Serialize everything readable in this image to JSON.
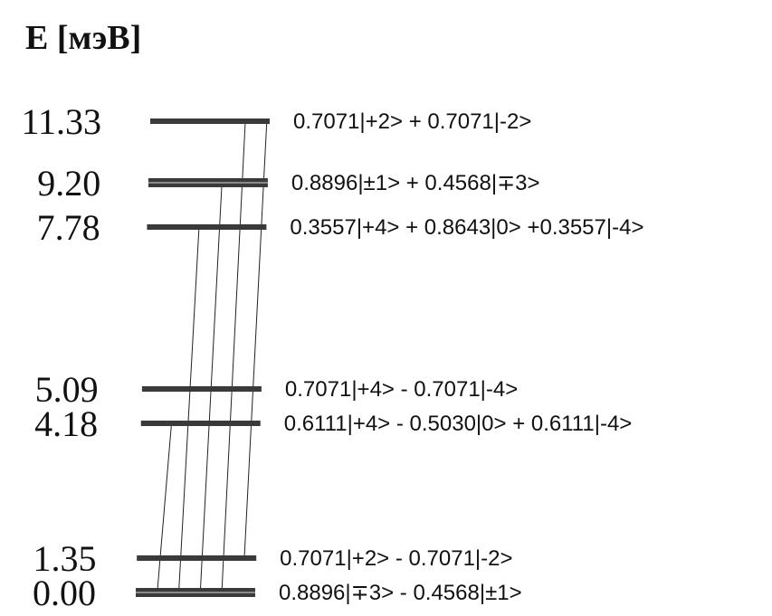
{
  "axis_title": "E [мэВ]",
  "colors": {
    "ink": "#111111",
    "bar": "#3a3a3a",
    "bar_highlight": "#8a8a8a"
  },
  "levels": [
    {
      "energy": "11.33",
      "state": "0.7071|+2> + 0.7071|-2>",
      "double": false
    },
    {
      "energy": "9.20",
      "state": "0.8896|±1> + 0.4568|∓3>",
      "double": true
    },
    {
      "energy": "7.78",
      "state": "0.3557|+4> + 0.8643|0> +0.3557|-4>",
      "double": false
    },
    {
      "energy": "5.09",
      "state": "0.7071|+4> - 0.7071|-4>",
      "double": false
    },
    {
      "energy": "4.18",
      "state": "0.6111|+4> - 0.5030|0> + 0.6111|-4>",
      "double": false
    },
    {
      "energy": "1.35",
      "state": "0.7071|+2> - 0.7071|-2>",
      "double": false
    },
    {
      "energy": "0.00",
      "state": "0.8896|∓3> - 0.4568|±1>",
      "double": true
    }
  ],
  "transitions": [
    {
      "from": "0.00",
      "to": "4.18"
    },
    {
      "from": "0.00",
      "to": "7.78"
    },
    {
      "from": "0.00",
      "to": "9.20"
    },
    {
      "from": "0.00",
      "to": "11.33"
    },
    {
      "from": "1.35",
      "to": "11.33"
    }
  ]
}
